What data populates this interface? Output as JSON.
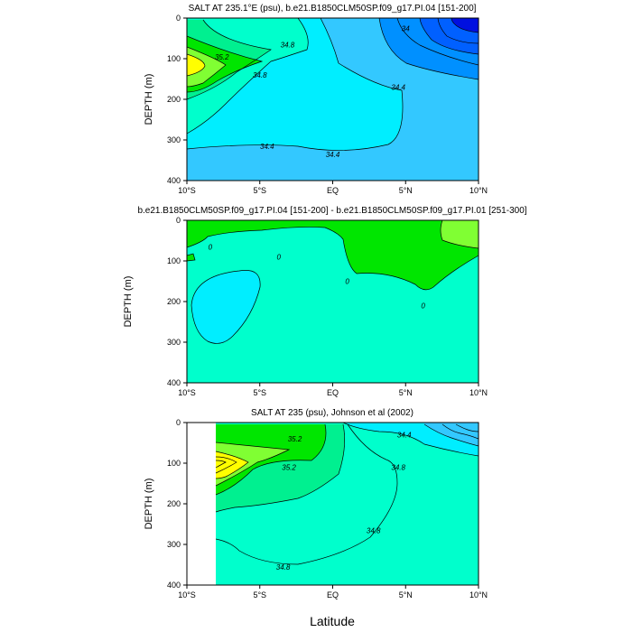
{
  "figure": {
    "xlabel": "Latitude"
  },
  "colors": {
    "deep_blue": "#0010e0",
    "blue": "#0060ff",
    "mid_blue": "#0090ff",
    "light_blue": "#33c8ff",
    "cyan": "#00eeff",
    "aqua": "#00ffcc",
    "teal_green": "#00f090",
    "green": "#00e600",
    "yellow_green": "#80ff33",
    "yellow": "#ffff00",
    "blank": "#ffffff"
  },
  "chart_data": [
    {
      "type": "contour",
      "title": "SALT AT 235.1°E (psu), b.e21.B1850CLM50SP.f09_g17.PI.04 [151-200]",
      "ylabel": "DEPTH (m)",
      "xlim": [
        -10,
        10
      ],
      "ylim": [
        400,
        0
      ],
      "x_ticks": [
        "10°S",
        "5°S",
        "EQ",
        "5°N",
        "10°N"
      ],
      "x_tick_values": [
        -10,
        -5,
        0,
        5,
        10
      ],
      "y_ticks": [
        0,
        100,
        200,
        300,
        400
      ],
      "contour_labels": [
        {
          "text": "35.2",
          "x": -7.6,
          "y": 95
        },
        {
          "text": "34.8",
          "x": -3.1,
          "y": 65
        },
        {
          "text": "34.8",
          "x": -5.0,
          "y": 140
        },
        {
          "text": "34",
          "x": 5.0,
          "y": 25
        },
        {
          "text": "34.4",
          "x": 4.5,
          "y": 170
        },
        {
          "text": "34.4",
          "x": -4.5,
          "y": 315
        },
        {
          "text": "34.4",
          "x": 0,
          "y": 335
        }
      ]
    },
    {
      "type": "contour",
      "title": "b.e21.B1850CLM50SP.f09_g17.PI.04 [151-200] - b.e21.B1850CLM50SP.f09_g17.PI.01 [251-300]",
      "ylabel": "DEPTH (m)",
      "xlim": [
        -10,
        10
      ],
      "ylim": [
        400,
        0
      ],
      "x_ticks": [
        "10°S",
        "5°S",
        "EQ",
        "5°N",
        "10°N"
      ],
      "x_tick_values": [
        -10,
        -5,
        0,
        5,
        10
      ],
      "y_ticks": [
        0,
        100,
        200,
        300,
        400
      ],
      "contour_labels": [
        {
          "text": "0",
          "x": -8.4,
          "y": 65
        },
        {
          "text": "0",
          "x": -3.7,
          "y": 90
        },
        {
          "text": "0",
          "x": 1.0,
          "y": 150
        },
        {
          "text": "0",
          "x": 6.2,
          "y": 210
        }
      ]
    },
    {
      "type": "contour",
      "title": "SALT AT 235 (psu), Johnson et al (2002)",
      "ylabel": "DEPTH (m)",
      "xlim": [
        -10,
        10
      ],
      "ylim": [
        400,
        0
      ],
      "x_ticks": [
        "10°S",
        "5°S",
        "EQ",
        "5°N",
        "10°N"
      ],
      "x_tick_values": [
        -10,
        -5,
        0,
        5,
        10
      ],
      "y_ticks": [
        0,
        100,
        200,
        300,
        400
      ],
      "contour_labels": [
        {
          "text": "35.2",
          "x": -2.6,
          "y": 40
        },
        {
          "text": "35.2",
          "x": -3.0,
          "y": 110
        },
        {
          "text": "34.4",
          "x": 4.9,
          "y": 30
        },
        {
          "text": "34.8",
          "x": 4.5,
          "y": 110
        },
        {
          "text": "34.8",
          "x": 2.8,
          "y": 265
        },
        {
          "text": "34.8",
          "x": -3.4,
          "y": 355
        }
      ]
    }
  ]
}
